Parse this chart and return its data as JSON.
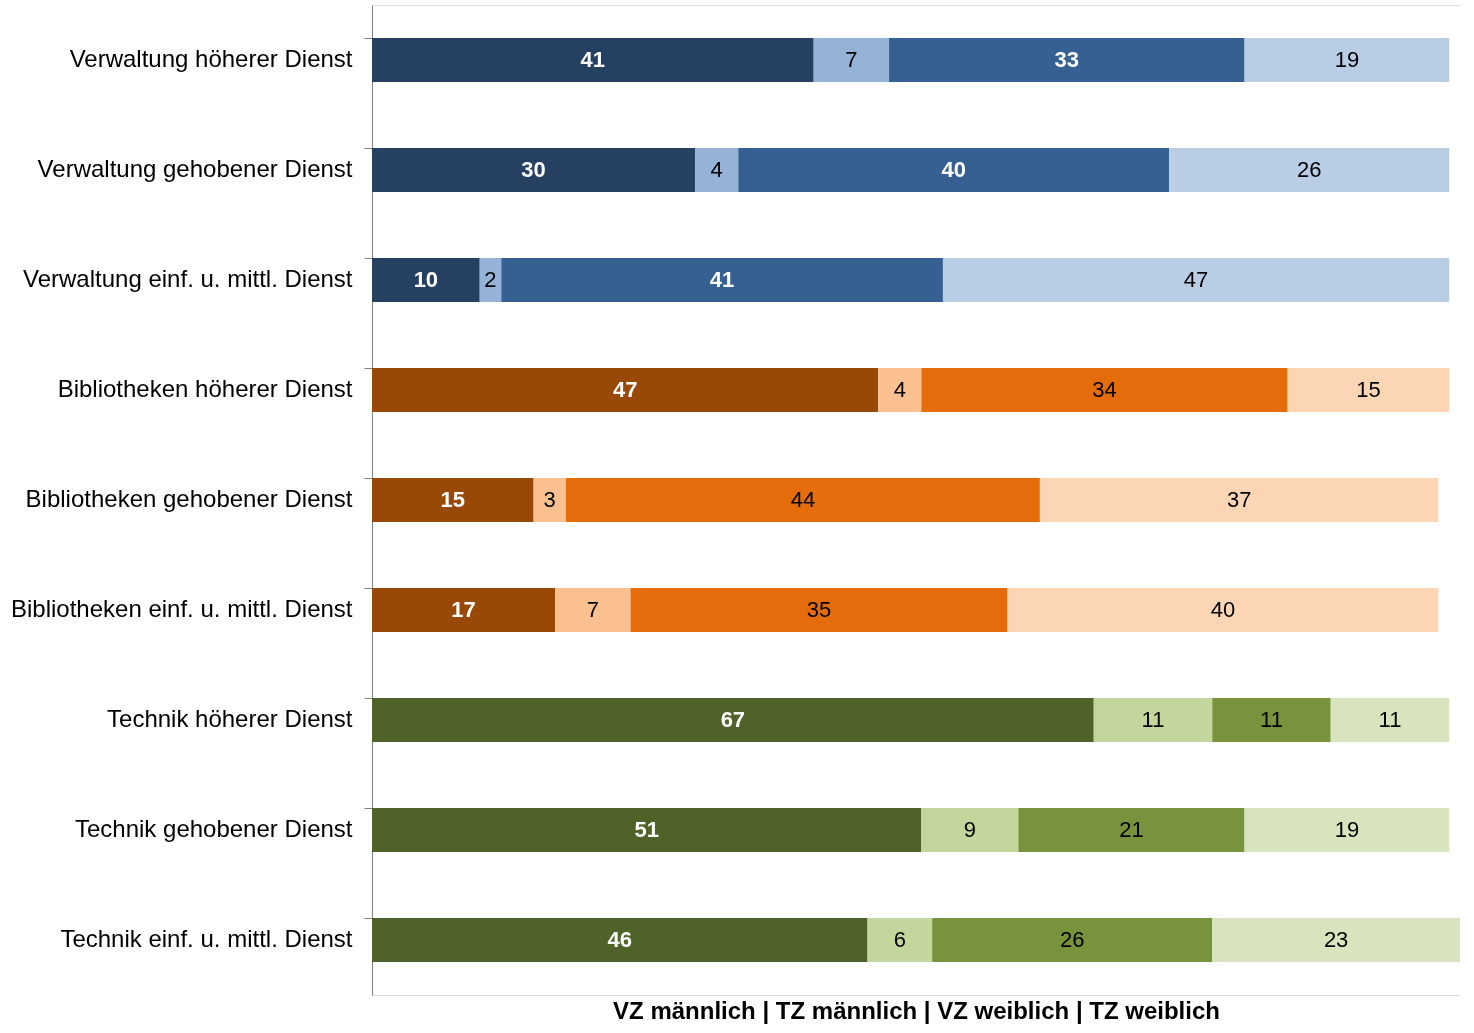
{
  "chart_data": {
    "type": "bar",
    "orientation": "horizontal",
    "stacked": true,
    "data_labels": true,
    "grid": false,
    "xlabel": "VZ männlich   |   TZ männlich   |   VZ weiblich   |   TZ weiblich",
    "categories": [
      "Verwaltung höherer Dienst",
      "Verwaltung gehobener Dienst",
      "Verwaltung einf. u. mittl. Dienst",
      "Bibliotheken höherer Dienst",
      "Bibliotheken gehobener Dienst",
      "Bibliotheken einf. u. mittl. Dienst",
      "Technik höherer Dienst",
      "Technik gehobener Dienst",
      "Technik einf. u. mittl. Dienst"
    ],
    "series": [
      {
        "values": [
          41,
          30,
          10,
          47,
          15,
          17,
          67,
          51,
          46
        ],
        "colors": [
          "#254061",
          "#254061",
          "#254061",
          "#984807",
          "#984807",
          "#984807",
          "#4f6228",
          "#4f6228",
          "#4f6228"
        ]
      },
      {
        "values": [
          7,
          4,
          2,
          4,
          3,
          7,
          11,
          9,
          6
        ],
        "colors": [
          "#95b3d7",
          "#95b3d7",
          "#95b3d7",
          "#fac090",
          "#fac090",
          "#fac090",
          "#c3d69b",
          "#c3d69b",
          "#c3d69b"
        ]
      },
      {
        "values": [
          33,
          40,
          41,
          34,
          44,
          35,
          11,
          21,
          26
        ],
        "colors": [
          "#366092",
          "#366092",
          "#366092",
          "#e46c0a",
          "#e46c0a",
          "#e46c0a",
          "#77933c",
          "#77933c",
          "#77933c"
        ]
      },
      {
        "values": [
          19,
          26,
          47,
          15,
          37,
          40,
          11,
          19,
          23
        ],
        "colors": [
          "#b9cde5",
          "#b9cde5",
          "#b9cde5",
          "#fcd5b5",
          "#fcd5b5",
          "#fcd5b5",
          "#d7e4bd",
          "#d7e4bd",
          "#d7e4bd"
        ]
      }
    ]
  }
}
